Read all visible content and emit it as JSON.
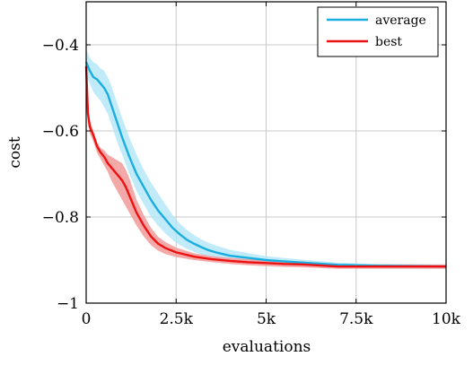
{
  "chart_data": {
    "type": "line",
    "title": "",
    "xlabel": "evaluations",
    "ylabel": "cost",
    "xlim": [
      0,
      10000
    ],
    "ylim": [
      -1.0,
      -0.3
    ],
    "x_ticks": [
      0,
      2500,
      5000,
      7500,
      10000
    ],
    "x_tick_labels": [
      "0",
      "2.5k",
      "5k",
      "7.5k",
      "10k"
    ],
    "y_ticks": [
      -1.0,
      -0.8,
      -0.6,
      -0.4
    ],
    "y_tick_labels": [
      "−1",
      "−0.8",
      "−0.6",
      "−0.4"
    ],
    "grid": true,
    "legend_position": "top-right",
    "colors": {
      "average": "#1aaee0",
      "average_band": "#b3e6f7",
      "best": "#ee1111",
      "best_band": "#f29a9a"
    },
    "series": [
      {
        "name": "average",
        "x": [
          0,
          100,
          200,
          300,
          400,
          500,
          600,
          700,
          800,
          900,
          1000,
          1200,
          1400,
          1600,
          1800,
          2000,
          2200,
          2400,
          2600,
          2800,
          3000,
          3200,
          3400,
          3600,
          3800,
          4000,
          4500,
          5000,
          5500,
          6000,
          7000,
          8000,
          9000,
          10000
        ],
        "y": [
          -0.44,
          -0.46,
          -0.475,
          -0.48,
          -0.49,
          -0.5,
          -0.515,
          -0.54,
          -0.565,
          -0.59,
          -0.615,
          -0.66,
          -0.7,
          -0.73,
          -0.76,
          -0.785,
          -0.805,
          -0.825,
          -0.84,
          -0.853,
          -0.862,
          -0.87,
          -0.877,
          -0.882,
          -0.886,
          -0.89,
          -0.895,
          -0.9,
          -0.903,
          -0.906,
          -0.911,
          -0.913,
          -0.914,
          -0.915
        ],
        "lower": [
          -0.47,
          -0.49,
          -0.51,
          -0.52,
          -0.53,
          -0.545,
          -0.56,
          -0.585,
          -0.61,
          -0.635,
          -0.655,
          -0.7,
          -0.74,
          -0.77,
          -0.8,
          -0.82,
          -0.838,
          -0.853,
          -0.865,
          -0.874,
          -0.881,
          -0.887,
          -0.892,
          -0.896,
          -0.9,
          -0.903,
          -0.906,
          -0.909,
          -0.911,
          -0.913,
          -0.916,
          -0.918,
          -0.919,
          -0.92
        ],
        "upper": [
          -0.41,
          -0.43,
          -0.44,
          -0.445,
          -0.455,
          -0.46,
          -0.475,
          -0.495,
          -0.52,
          -0.545,
          -0.57,
          -0.615,
          -0.655,
          -0.69,
          -0.72,
          -0.745,
          -0.77,
          -0.795,
          -0.815,
          -0.83,
          -0.842,
          -0.852,
          -0.86,
          -0.866,
          -0.871,
          -0.876,
          -0.884,
          -0.891,
          -0.895,
          -0.899,
          -0.906,
          -0.909,
          -0.91,
          -0.911
        ]
      },
      {
        "name": "best",
        "x": [
          0,
          50,
          100,
          200,
          300,
          400,
          500,
          600,
          700,
          800,
          900,
          1000,
          1100,
          1200,
          1400,
          1600,
          1800,
          2000,
          2200,
          2500,
          3000,
          3500,
          4000,
          4500,
          5000,
          5500,
          6000,
          7000,
          8000,
          9000,
          10000
        ],
        "y": [
          -0.45,
          -0.56,
          -0.59,
          -0.61,
          -0.635,
          -0.65,
          -0.66,
          -0.675,
          -0.685,
          -0.695,
          -0.705,
          -0.715,
          -0.73,
          -0.75,
          -0.79,
          -0.82,
          -0.845,
          -0.862,
          -0.872,
          -0.882,
          -0.892,
          -0.898,
          -0.902,
          -0.905,
          -0.907,
          -0.909,
          -0.91,
          -0.915,
          -0.915,
          -0.915,
          -0.915
        ],
        "lower": [
          -0.48,
          -0.58,
          -0.605,
          -0.625,
          -0.65,
          -0.665,
          -0.68,
          -0.695,
          -0.715,
          -0.73,
          -0.745,
          -0.76,
          -0.775,
          -0.79,
          -0.82,
          -0.845,
          -0.865,
          -0.878,
          -0.886,
          -0.893,
          -0.9,
          -0.905,
          -0.909,
          -0.912,
          -0.914,
          -0.916,
          -0.917,
          -0.92,
          -0.92,
          -0.92,
          -0.92
        ],
        "upper": [
          -0.43,
          -0.54,
          -0.575,
          -0.6,
          -0.625,
          -0.64,
          -0.645,
          -0.655,
          -0.66,
          -0.665,
          -0.67,
          -0.675,
          -0.69,
          -0.71,
          -0.76,
          -0.795,
          -0.825,
          -0.846,
          -0.858,
          -0.871,
          -0.884,
          -0.891,
          -0.895,
          -0.898,
          -0.9,
          -0.902,
          -0.903,
          -0.91,
          -0.91,
          -0.91,
          -0.91
        ]
      }
    ]
  }
}
